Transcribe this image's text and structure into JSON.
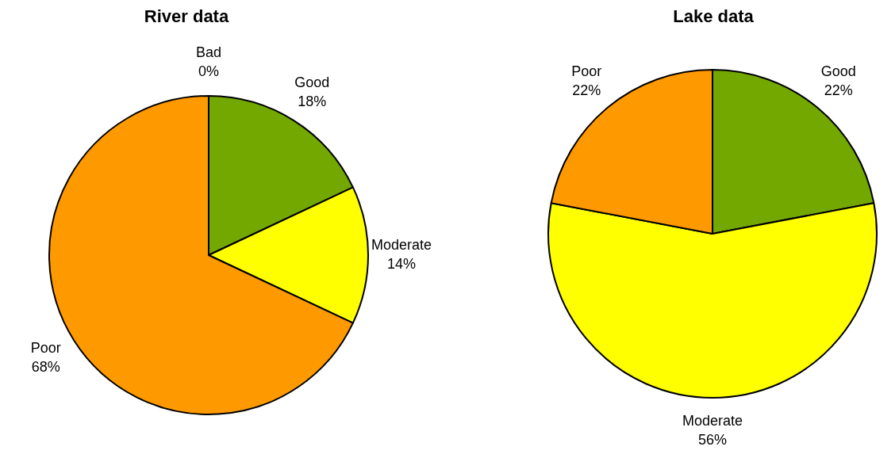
{
  "chart_data": [
    {
      "type": "pie",
      "title": "River data",
      "categories": [
        "Good",
        "Moderate",
        "Poor",
        "Bad"
      ],
      "values": [
        18,
        14,
        68,
        0
      ],
      "value_labels": [
        "18%",
        "14%",
        "68%",
        "0%"
      ],
      "colors": [
        "#72a800",
        "#ffff00",
        "#ff9900",
        "#cc0000"
      ],
      "legend": false
    },
    {
      "type": "pie",
      "title": "Lake data",
      "categories": [
        "Good",
        "Moderate",
        "Poor"
      ],
      "values": [
        22,
        56,
        22
      ],
      "value_labels": [
        "22%",
        "56%",
        "22%"
      ],
      "colors": [
        "#72a800",
        "#ffff00",
        "#ff9900"
      ],
      "legend": false
    }
  ]
}
